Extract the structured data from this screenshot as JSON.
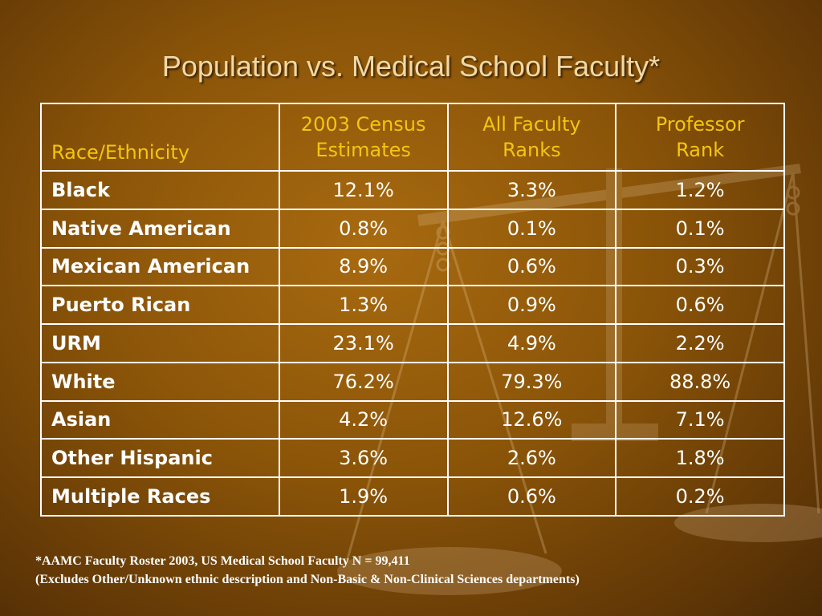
{
  "slide": {
    "title": "Population vs. Medical School Faculty*"
  },
  "table": {
    "headers": {
      "race": "Race/Ethnicity",
      "census": [
        "2003 Census",
        "Estimates"
      ],
      "faculty": [
        "All Faculty",
        "Ranks"
      ],
      "professor": [
        "Professor",
        "Rank"
      ]
    },
    "rows": [
      {
        "group": "Black",
        "census": "12.1%",
        "faculty": "3.3%",
        "professor": "1.2%"
      },
      {
        "group": "Native American",
        "census": "0.8%",
        "faculty": "0.1%",
        "professor": "0.1%"
      },
      {
        "group": "Mexican American",
        "census": "8.9%",
        "faculty": "0.6%",
        "professor": "0.3%"
      },
      {
        "group": "Puerto Rican",
        "census": "1.3%",
        "faculty": "0.9%",
        "professor": "0.6%"
      },
      {
        "group": "URM",
        "census": "23.1%",
        "faculty": "4.9%",
        "professor": "2.2%"
      },
      {
        "group": "White",
        "census": "76.2%",
        "faculty": "79.3%",
        "professor": "88.8%"
      },
      {
        "group": "Asian",
        "census": "4.2%",
        "faculty": "12.6%",
        "professor": "7.1%"
      },
      {
        "group": "Other Hispanic",
        "census": "3.6%",
        "faculty": "2.6%",
        "professor": "1.8%"
      },
      {
        "group": "Multiple Races",
        "census": "1.9%",
        "faculty": "0.6%",
        "professor": "0.2%"
      }
    ]
  },
  "footnote": {
    "line1": "*AAMC Faculty Roster 2003, US Medical School Faculty N = 99,411",
    "line2": "(Excludes Other/Unknown ethnic description and Non-Basic & Non-Clinical Sciences departments)"
  },
  "colors": {
    "header_text": "#f3c60f",
    "cell_text": "#ffffff",
    "title_text": "#efd9a6",
    "background": "#8a5408"
  },
  "background_image": "scales-of-justice-watermark"
}
